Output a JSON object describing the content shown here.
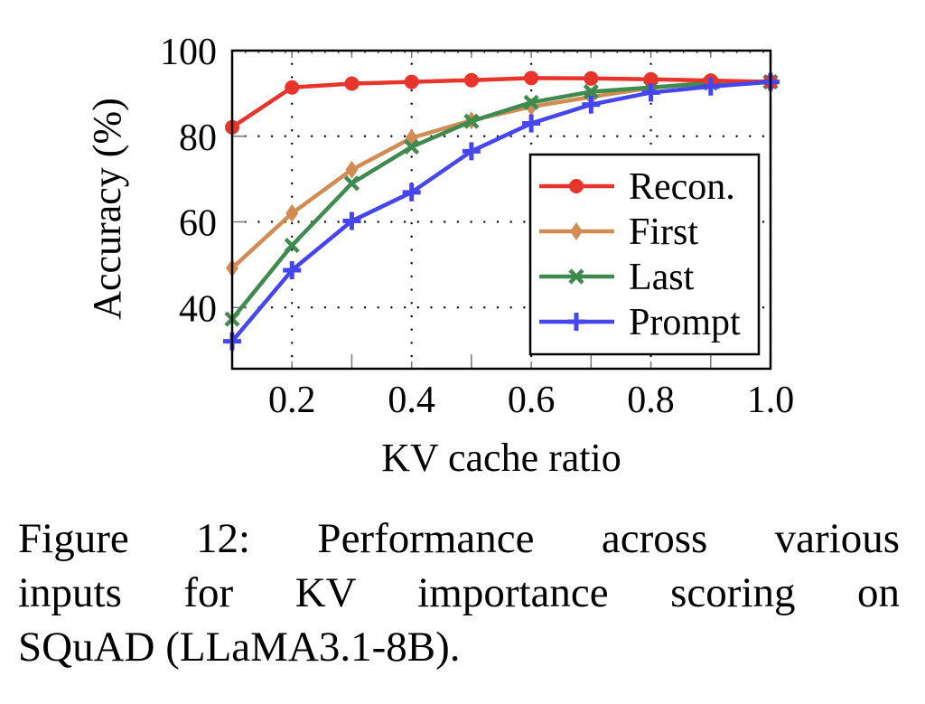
{
  "chart_data": {
    "type": "line",
    "title": "",
    "xlabel": "KV cache ratio",
    "ylabel": "Accuracy (%)",
    "xlim": [
      0.1,
      1.0
    ],
    "ylim": [
      25.7,
      100
    ],
    "xticks": [
      0.2,
      0.4,
      0.6,
      0.8,
      1.0
    ],
    "xtick_labels": [
      "0.2",
      "0.4",
      "0.6",
      "0.8",
      "1.0"
    ],
    "xminor_ticks": [
      0.3,
      0.5,
      0.7,
      0.9
    ],
    "yticks": [
      40,
      60,
      80,
      100
    ],
    "ytick_labels": [
      "40",
      "60",
      "80",
      "100"
    ],
    "grid": "dotted",
    "legend_position": "lower-right",
    "x": [
      0.1,
      0.2,
      0.3,
      0.4,
      0.5,
      0.6,
      0.7,
      0.8,
      0.9,
      1.0
    ],
    "series": [
      {
        "name": "Recon.",
        "color": "#e8352b",
        "marker": "circle",
        "values": [
          82.1,
          91.4,
          92.3,
          92.7,
          93.1,
          93.6,
          93.5,
          93.3,
          93.0,
          92.7
        ]
      },
      {
        "name": "First",
        "color": "#d08c52",
        "marker": "diamond",
        "values": [
          49.2,
          62.0,
          72.2,
          79.6,
          83.7,
          86.9,
          89.2,
          91.3,
          92.6,
          92.7
        ]
      },
      {
        "name": "Last",
        "color": "#3f8a4f",
        "marker": "x",
        "values": [
          37.3,
          54.5,
          69.0,
          77.5,
          83.5,
          87.9,
          90.4,
          91.4,
          92.4,
          92.7
        ]
      },
      {
        "name": "Prompt",
        "color": "#4646ee",
        "marker": "plus",
        "values": [
          32.1,
          48.7,
          60.2,
          66.9,
          76.5,
          83.0,
          87.4,
          90.2,
          91.6,
          92.7
        ]
      }
    ]
  },
  "caption": {
    "lines": [
      "Figure 12: Performance across various",
      "inputs for KV importance scoring on",
      "SQuAD (LLaMA3.1-8B)."
    ]
  }
}
